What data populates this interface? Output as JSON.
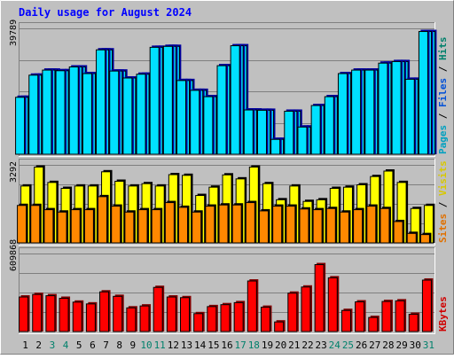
{
  "chart_data": {
    "type": "bar",
    "title": "Daily usage for August 2024",
    "categories": [
      "1",
      "2",
      "3",
      "4",
      "5",
      "6",
      "7",
      "8",
      "9",
      "10",
      "11",
      "12",
      "13",
      "14",
      "15",
      "16",
      "17",
      "18",
      "19",
      "20",
      "21",
      "22",
      "23",
      "24",
      "25",
      "26",
      "27",
      "28",
      "29",
      "30",
      "31"
    ],
    "weekend_days": [
      "3",
      "4",
      "10",
      "11",
      "17",
      "18",
      "24",
      "25",
      "31"
    ],
    "panels": [
      {
        "id": "top",
        "max_label": "39789",
        "ymax": 39789,
        "legend": [
          {
            "text": "Pages",
            "color": "#00a0c0"
          },
          {
            "text": " / ",
            "color": "#000000"
          },
          {
            "text": "Files",
            "color": "#0050d8"
          },
          {
            "text": " / ",
            "color": "#000000"
          },
          {
            "text": "Hits",
            "color": "#00806b"
          }
        ],
        "series": [
          {
            "name": "Hits",
            "color": "#00e0ff",
            "edge": "#0000a0",
            "values": [
              18000,
              25000,
              26600,
              26400,
              27600,
              25500,
              33000,
              26300,
              24100,
              25300,
              33800,
              34100,
              23300,
              20200,
              18200,
              28000,
              34300,
              14000,
              13900,
              4700,
              13600,
              8600,
              15400,
              18200,
              25500,
              26600,
              26600,
              28800,
              29300,
              23700,
              38800
            ]
          },
          {
            "name": "Files",
            "color": "#00e0ff",
            "edge": "#0000a0",
            "values": [
              18000,
              25000,
              26600,
              26400,
              27600,
              25500,
              33000,
              26300,
              24100,
              25300,
              33800,
              34100,
              23300,
              20200,
              18200,
              28000,
              34300,
              14000,
              13900,
              4700,
              13600,
              8600,
              15400,
              18200,
              25500,
              26600,
              26600,
              28800,
              29300,
              23700,
              38800
            ]
          },
          {
            "name": "Pages",
            "color": "#00e0ff",
            "edge": "#0000a0",
            "values": [
              18000,
              25000,
              26600,
              26400,
              27600,
              25500,
              33000,
              26300,
              24100,
              25300,
              33800,
              34100,
              23300,
              20200,
              18200,
              28000,
              34300,
              14000,
              13900,
              4700,
              13600,
              8600,
              15400,
              18200,
              25500,
              26600,
              26600,
              28800,
              29300,
              23700,
              38800
            ]
          }
        ]
      },
      {
        "id": "middle",
        "max_label": "3292",
        "ymax": 3292,
        "legend": [
          {
            "text": "Sites",
            "color": "#e07000"
          },
          {
            "text": " / ",
            "color": "#000000"
          },
          {
            "text": "Visits",
            "color": "#d8c800"
          }
        ],
        "series": [
          {
            "name": "Visits",
            "color": "#ffff00",
            "values": [
              2400,
              3200,
              2550,
              2300,
              2400,
              2400,
              3000,
              2600,
              2400,
              2500,
              2400,
              2880,
              2850,
              2000,
              2350,
              2870,
              2700,
              3200,
              2500,
              1820,
              2400,
              1750,
              1820,
              2300,
              2350,
              2450,
              2800,
              3030,
              2550,
              1450,
              1580
            ]
          },
          {
            "name": "Sites",
            "color": "#ff8800",
            "values": [
              1580,
              1580,
              1400,
              1300,
              1400,
              1400,
              1950,
              1550,
              1300,
              1400,
              1400,
              1700,
              1500,
              1300,
              1550,
              1600,
              1600,
              1700,
              1350,
              1550,
              1550,
              1430,
              1400,
              1450,
              1300,
              1400,
              1550,
              1450,
              900,
              400,
              350
            ]
          }
        ]
      },
      {
        "id": "bottom",
        "max_label": "609868",
        "ymax": 609868,
        "legend": [
          {
            "text": "KBytes",
            "color": "#d00000"
          }
        ],
        "series": [
          {
            "name": "KBytes",
            "color": "#ff0000",
            "edge": "#800000",
            "values": [
              270000,
              290000,
              280000,
              260000,
              230000,
              216000,
              310000,
              275000,
              185000,
              200000,
              345000,
              270000,
              265000,
              140000,
              195000,
              210000,
              226000,
              395000,
              190000,
              75000,
              300000,
              348000,
              523000,
              420000,
              165000,
              232000,
              110000,
              235000,
              240000,
              135000,
              402000
            ]
          }
        ]
      }
    ]
  }
}
